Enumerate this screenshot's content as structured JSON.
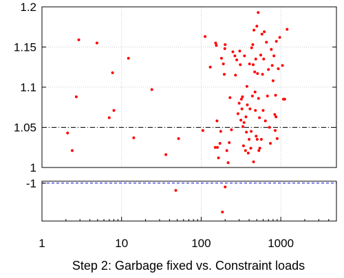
{
  "chart_data": {
    "type": "scatter",
    "title": "",
    "xlabel": "Step 2: Garbage fixed vs. Constraint loads",
    "ylabel": "",
    "x_scale": "log",
    "xlim": [
      1,
      5000
    ],
    "ylim_main": [
      1.0,
      1.2
    ],
    "ylim_lower": [
      -1.4,
      -0.98
    ],
    "x_ticks": [
      {
        "value": 1,
        "label": "1"
      },
      {
        "value": 10,
        "label": "10"
      },
      {
        "value": 100,
        "label": "100"
      },
      {
        "value": 1000,
        "label": "1000"
      }
    ],
    "y_ticks_main": [
      {
        "value": 1.0,
        "label": "1"
      },
      {
        "value": 1.05,
        "label": "1.05"
      },
      {
        "value": 1.1,
        "label": "1.1"
      },
      {
        "value": 1.15,
        "label": "1.15"
      },
      {
        "value": 1.2,
        "label": "1.2"
      }
    ],
    "y_ticks_lower": [
      {
        "value": -1.0,
        "label": "-1"
      }
    ],
    "reference_lines": [
      {
        "y": 1.05,
        "style": "dash-dot",
        "color": "#000000"
      },
      {
        "y": 1.0,
        "style": "dashed",
        "color": "#0000cc"
      },
      {
        "y": -1.0,
        "style": "dashed",
        "color": "#0000cc"
      }
    ],
    "grid": true,
    "marker_color": "#ff0000",
    "points": [
      [
        2.1,
        1.043
      ],
      [
        2.4,
        1.021
      ],
      [
        2.7,
        1.088
      ],
      [
        2.9,
        1.159
      ],
      [
        4.9,
        1.155
      ],
      [
        7,
        1.062
      ],
      [
        7.7,
        1.118
      ],
      [
        8,
        1.071
      ],
      [
        12.2,
        1.136
      ],
      [
        14.2,
        1.037
      ],
      [
        24,
        1.097
      ],
      [
        36,
        1.016
      ],
      [
        52,
        1.036
      ],
      [
        105,
        1.046
      ],
      [
        112,
        1.163
      ],
      [
        130,
        1.125
      ],
      [
        150,
        1.025
      ],
      [
        152,
        1.155
      ],
      [
        155,
        1.152
      ],
      [
        158,
        1.058
      ],
      [
        160,
        1.025
      ],
      [
        165,
        1.012
      ],
      [
        172,
        1.03
      ],
      [
        176,
        1.045
      ],
      [
        180,
        1.136
      ],
      [
        190,
        1.129
      ],
      [
        195,
        1.116
      ],
      [
        198,
        1.148
      ],
      [
        200,
        1.153
      ],
      [
        210,
        1.021
      ],
      [
        218,
        1.006
      ],
      [
        225,
        1.031
      ],
      [
        230,
        1.087
      ],
      [
        240,
        1.047
      ],
      [
        250,
        1.144
      ],
      [
        265,
        1.139
      ],
      [
        270,
        1.115
      ],
      [
        280,
        1.134
      ],
      [
        290,
        1.067
      ],
      [
        300,
        1.08
      ],
      [
        305,
        1.145
      ],
      [
        310,
        1.128
      ],
      [
        315,
        1.059
      ],
      [
        320,
        1.085
      ],
      [
        325,
        1.073
      ],
      [
        330,
        1.088
      ],
      [
        335,
        1.051
      ],
      [
        340,
        1.027
      ],
      [
        345,
        1.056
      ],
      [
        350,
        1.139
      ],
      [
        360,
        1.021
      ],
      [
        365,
        1.063
      ],
      [
        370,
        1.044
      ],
      [
        375,
        1.101
      ],
      [
        380,
        1.078
      ],
      [
        390,
        1.018
      ],
      [
        400,
        1.035
      ],
      [
        405,
        1.129
      ],
      [
        410,
        1.073
      ],
      [
        420,
        1.024
      ],
      [
        425,
        1.045
      ],
      [
        430,
        1.149
      ],
      [
        440,
        1.089
      ],
      [
        445,
        1.153
      ],
      [
        450,
        1.128
      ],
      [
        455,
        1.007
      ],
      [
        460,
        1.171
      ],
      [
        470,
        1.119
      ],
      [
        475,
        1.094
      ],
      [
        480,
        1.071
      ],
      [
        485,
        1.135
      ],
      [
        490,
        1.039
      ],
      [
        500,
        1.176
      ],
      [
        505,
        1.035
      ],
      [
        510,
        1.117
      ],
      [
        520,
        1.193
      ],
      [
        525,
        1.086
      ],
      [
        530,
        1.021
      ],
      [
        540,
        1.062
      ],
      [
        545,
        1.024
      ],
      [
        560,
        1.14
      ],
      [
        570,
        1.035
      ],
      [
        580,
        1.166
      ],
      [
        590,
        1.116
      ],
      [
        600,
        1.071
      ],
      [
        610,
        1.135
      ],
      [
        620,
        1.169
      ],
      [
        640,
        1.058
      ],
      [
        660,
        1.156
      ],
      [
        680,
        1.089
      ],
      [
        700,
        1.122
      ],
      [
        720,
        1.05
      ],
      [
        740,
        1.03
      ],
      [
        760,
        1.147
      ],
      [
        780,
        1.127
      ],
      [
        800,
        1.108
      ],
      [
        820,
        1.139
      ],
      [
        840,
        1.066
      ],
      [
        850,
        1.046
      ],
      [
        860,
        1.09
      ],
      [
        870,
        1.063
      ],
      [
        880,
        1.157
      ],
      [
        900,
        1.036
      ],
      [
        930,
        1.123
      ],
      [
        970,
        1.162
      ],
      [
        1050,
        1.127
      ],
      [
        1080,
        1.085
      ],
      [
        1120,
        1.085
      ],
      [
        1200,
        1.172
      ]
    ],
    "points_lower": [
      [
        48,
        -1.077
      ],
      [
        185,
        -1.305
      ],
      [
        200,
        -1.041
      ]
    ]
  }
}
